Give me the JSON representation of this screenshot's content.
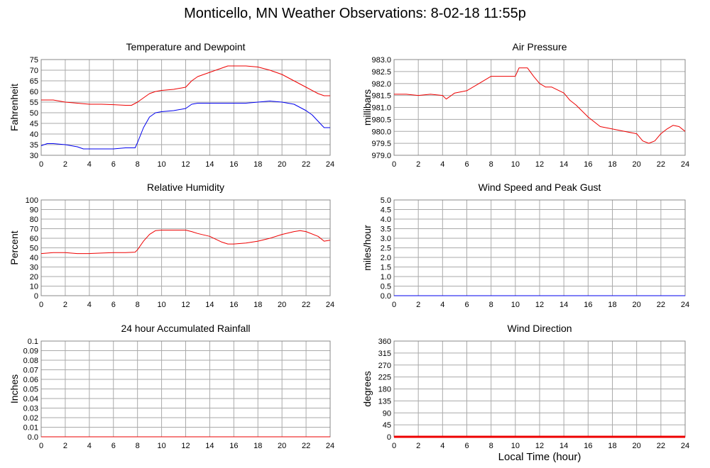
{
  "title": "Monticello, MN Weather Observations: 8-02-18 11:55p",
  "xaxis_title": "Local Time (hour)",
  "colors": {
    "red": "#ee0000",
    "blue": "#0000ee",
    "grid": "#aaaaaa",
    "axis": "#888888"
  },
  "chart_data": [
    {
      "id": "temp",
      "type": "line",
      "title": "Temperature and Dewpoint",
      "ylabel": "Fahrenheit",
      "xlim": [
        0,
        24
      ],
      "ylim": [
        30,
        75
      ],
      "xticks": [
        "0",
        "2",
        "4",
        "6",
        "8",
        "10",
        "12",
        "14",
        "16",
        "18",
        "20",
        "22",
        "24"
      ],
      "yticks": [
        "30",
        "35",
        "40",
        "45",
        "50",
        "55",
        "60",
        "65",
        "70",
        "75"
      ],
      "series": [
        {
          "color": "#ee0000",
          "x": [
            0,
            1,
            2,
            3,
            4,
            5,
            6,
            7,
            7.5,
            8,
            8.5,
            9,
            9.5,
            10,
            11,
            12,
            12.5,
            13,
            14,
            15,
            15.5,
            16,
            17,
            18,
            19,
            20,
            21,
            22,
            23,
            23.5,
            24
          ],
          "y": [
            56,
            56,
            55,
            54.5,
            54,
            54,
            53.8,
            53.5,
            53.5,
            55,
            57,
            59,
            60,
            60.5,
            61,
            62,
            65,
            67,
            69,
            71,
            72,
            72,
            72,
            71.5,
            70,
            68,
            65,
            62,
            59,
            58,
            58
          ]
        },
        {
          "color": "#0000ee",
          "x": [
            0,
            0.5,
            1,
            2,
            3,
            3.5,
            4,
            5,
            6,
            7,
            7.8,
            8,
            8.5,
            9,
            9.5,
            10,
            11,
            12,
            12.5,
            13,
            14,
            15,
            16,
            17,
            18,
            19,
            20,
            21,
            22,
            22.5,
            23,
            23.5,
            24
          ],
          "y": [
            34.5,
            35.5,
            35.5,
            35,
            34,
            33,
            33,
            33,
            33,
            33.5,
            33.5,
            36,
            43,
            48,
            50,
            50.5,
            51,
            52,
            54,
            54.5,
            54.5,
            54.5,
            54.5,
            54.5,
            55,
            55.5,
            55,
            54,
            51,
            49,
            46,
            43,
            43
          ]
        }
      ]
    },
    {
      "id": "pressure",
      "type": "line",
      "title": "Air Pressure",
      "ylabel": "millibars",
      "xlim": [
        0,
        24
      ],
      "ylim": [
        979.0,
        983.0
      ],
      "xticks": [
        "0",
        "2",
        "4",
        "6",
        "8",
        "10",
        "12",
        "14",
        "16",
        "18",
        "20",
        "22",
        "24"
      ],
      "yticks": [
        "979.0",
        "979.5",
        "980.0",
        "980.5",
        "981.0",
        "981.5",
        "982.0",
        "982.5",
        "983.0"
      ],
      "series": [
        {
          "color": "#ee0000",
          "x": [
            0,
            1,
            2,
            3,
            4,
            4.3,
            5,
            6,
            7,
            8,
            9,
            10,
            10.3,
            11,
            11.5,
            12,
            12.5,
            13,
            14,
            14.5,
            15,
            16,
            17,
            18,
            19,
            20,
            20.5,
            21,
            21.5,
            22,
            22.5,
            23,
            23.5,
            24
          ],
          "y": [
            981.55,
            981.55,
            981.5,
            981.55,
            981.5,
            981.35,
            981.6,
            981.7,
            982.0,
            982.3,
            982.3,
            982.3,
            982.65,
            982.65,
            982.3,
            982.0,
            981.85,
            981.85,
            981.6,
            981.3,
            981.1,
            980.6,
            980.2,
            980.1,
            980.0,
            979.9,
            979.6,
            979.5,
            979.6,
            979.9,
            980.1,
            980.25,
            980.2,
            980.0
          ]
        }
      ]
    },
    {
      "id": "humidity",
      "type": "line",
      "title": "Relative Humidity",
      "ylabel": "Percent",
      "xlim": [
        0,
        24
      ],
      "ylim": [
        0,
        100
      ],
      "xticks": [
        "0",
        "2",
        "4",
        "6",
        "8",
        "10",
        "12",
        "14",
        "16",
        "18",
        "20",
        "22",
        "24"
      ],
      "yticks": [
        "0",
        "10",
        "20",
        "30",
        "40",
        "50",
        "60",
        "70",
        "80",
        "90",
        "100"
      ],
      "series": [
        {
          "color": "#ee0000",
          "x": [
            0,
            1,
            2,
            3,
            4,
            5,
            6,
            7,
            7.8,
            8,
            8.5,
            9,
            9.5,
            10,
            11,
            12,
            12.5,
            13,
            14,
            15,
            15.5,
            16,
            17,
            18,
            19,
            20,
            21,
            21.5,
            22,
            23,
            23.5,
            24
          ],
          "y": [
            44,
            45,
            45,
            44,
            44,
            44.5,
            45,
            45,
            45.5,
            48,
            57,
            64,
            68,
            68.5,
            68.5,
            68.5,
            67,
            65,
            62,
            56,
            54,
            54,
            55,
            57,
            60,
            64,
            67,
            68,
            67,
            62,
            57,
            58
          ]
        }
      ]
    },
    {
      "id": "wind",
      "type": "line",
      "title": "Wind Speed and Peak Gust",
      "ylabel": "miles/hour",
      "xlim": [
        0,
        24
      ],
      "ylim": [
        0,
        5
      ],
      "xticks": [
        "0",
        "2",
        "4",
        "6",
        "8",
        "10",
        "12",
        "14",
        "16",
        "18",
        "20",
        "22",
        "24"
      ],
      "yticks": [
        "0.0",
        "0.5",
        "1.0",
        "1.5",
        "2.0",
        "2.5",
        "3.0",
        "3.5",
        "4.0",
        "4.5",
        "5.0"
      ],
      "series": [
        {
          "color": "#ee0000",
          "x": [
            0,
            24
          ],
          "y": [
            0,
            0
          ]
        },
        {
          "color": "#0000ee",
          "x": [
            0,
            24
          ],
          "y": [
            0,
            0
          ]
        }
      ]
    },
    {
      "id": "rain",
      "type": "line",
      "title": "24 hour Accumulated Rainfall",
      "ylabel": "Inches",
      "xlim": [
        0,
        24
      ],
      "ylim": [
        0,
        0.1
      ],
      "xticks": [
        "0",
        "2",
        "4",
        "6",
        "8",
        "10",
        "12",
        "14",
        "16",
        "18",
        "20",
        "22",
        "24"
      ],
      "yticks": [
        "0.0",
        "0.01",
        "0.02",
        "0.03",
        "0.04",
        "0.05",
        "0.06",
        "0.07",
        "0.08",
        "0.09",
        "0.1"
      ],
      "series": [
        {
          "color": "#ee0000",
          "x": [
            0,
            24
          ],
          "y": [
            0,
            0
          ]
        }
      ]
    },
    {
      "id": "direction",
      "type": "line",
      "title": "Wind Direction",
      "ylabel": "degrees",
      "xlim": [
        0,
        24
      ],
      "ylim": [
        0,
        360
      ],
      "xticks": [
        "0",
        "2",
        "4",
        "6",
        "8",
        "10",
        "12",
        "14",
        "16",
        "18",
        "20",
        "22",
        "24"
      ],
      "yticks": [
        "0",
        "45",
        "90",
        "135",
        "180",
        "225",
        "270",
        "315",
        "360"
      ],
      "series": [
        {
          "color": "#ee0000",
          "x": [
            0,
            24
          ],
          "y": [
            0,
            0
          ],
          "thick": true
        }
      ]
    }
  ]
}
